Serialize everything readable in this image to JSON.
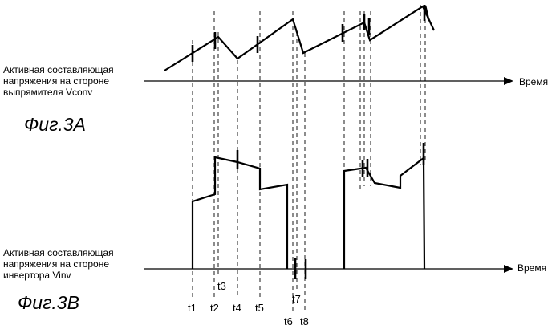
{
  "figure_a": {
    "label_line1": "Активная составляющая",
    "label_line2": "напряжения на стороне",
    "label_line3": "выпрямителя Vconv",
    "axis_label": "Время",
    "caption": "Фиг.3A"
  },
  "figure_b": {
    "label_line1": "Активная составляющая",
    "label_line2": "напряжения на стороне",
    "label_line3": "инвертора Vinv",
    "axis_label": "Время",
    "caption": "Фиг.3B"
  },
  "time_labels": [
    "t1",
    "t2",
    "t3",
    "t4",
    "t5",
    "t6",
    "t7",
    "t8"
  ]
}
